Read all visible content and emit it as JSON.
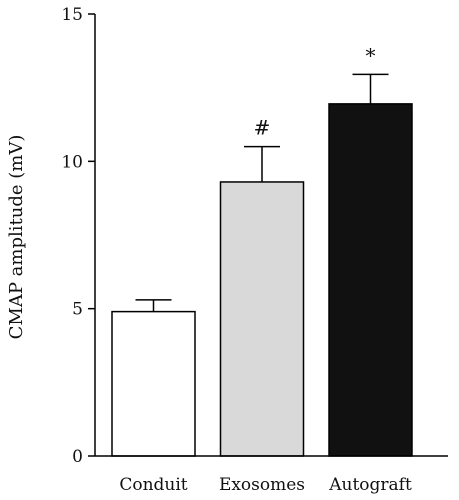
{
  "chart_data": {
    "type": "bar",
    "ylabel": "CMAP amplitude (mV)",
    "ylim": [
      0,
      15
    ],
    "yticks": [
      0,
      5,
      10,
      15
    ],
    "categories": [
      "Conduit",
      "Exosomes",
      "Autograft"
    ],
    "values": [
      4.9,
      9.3,
      11.95
    ],
    "errors": [
      0.4,
      1.2,
      1.0
    ],
    "annotations": [
      "",
      "#",
      "*"
    ],
    "colors": [
      "#ffffff",
      "#d9d9d9",
      "#111111"
    ]
  }
}
